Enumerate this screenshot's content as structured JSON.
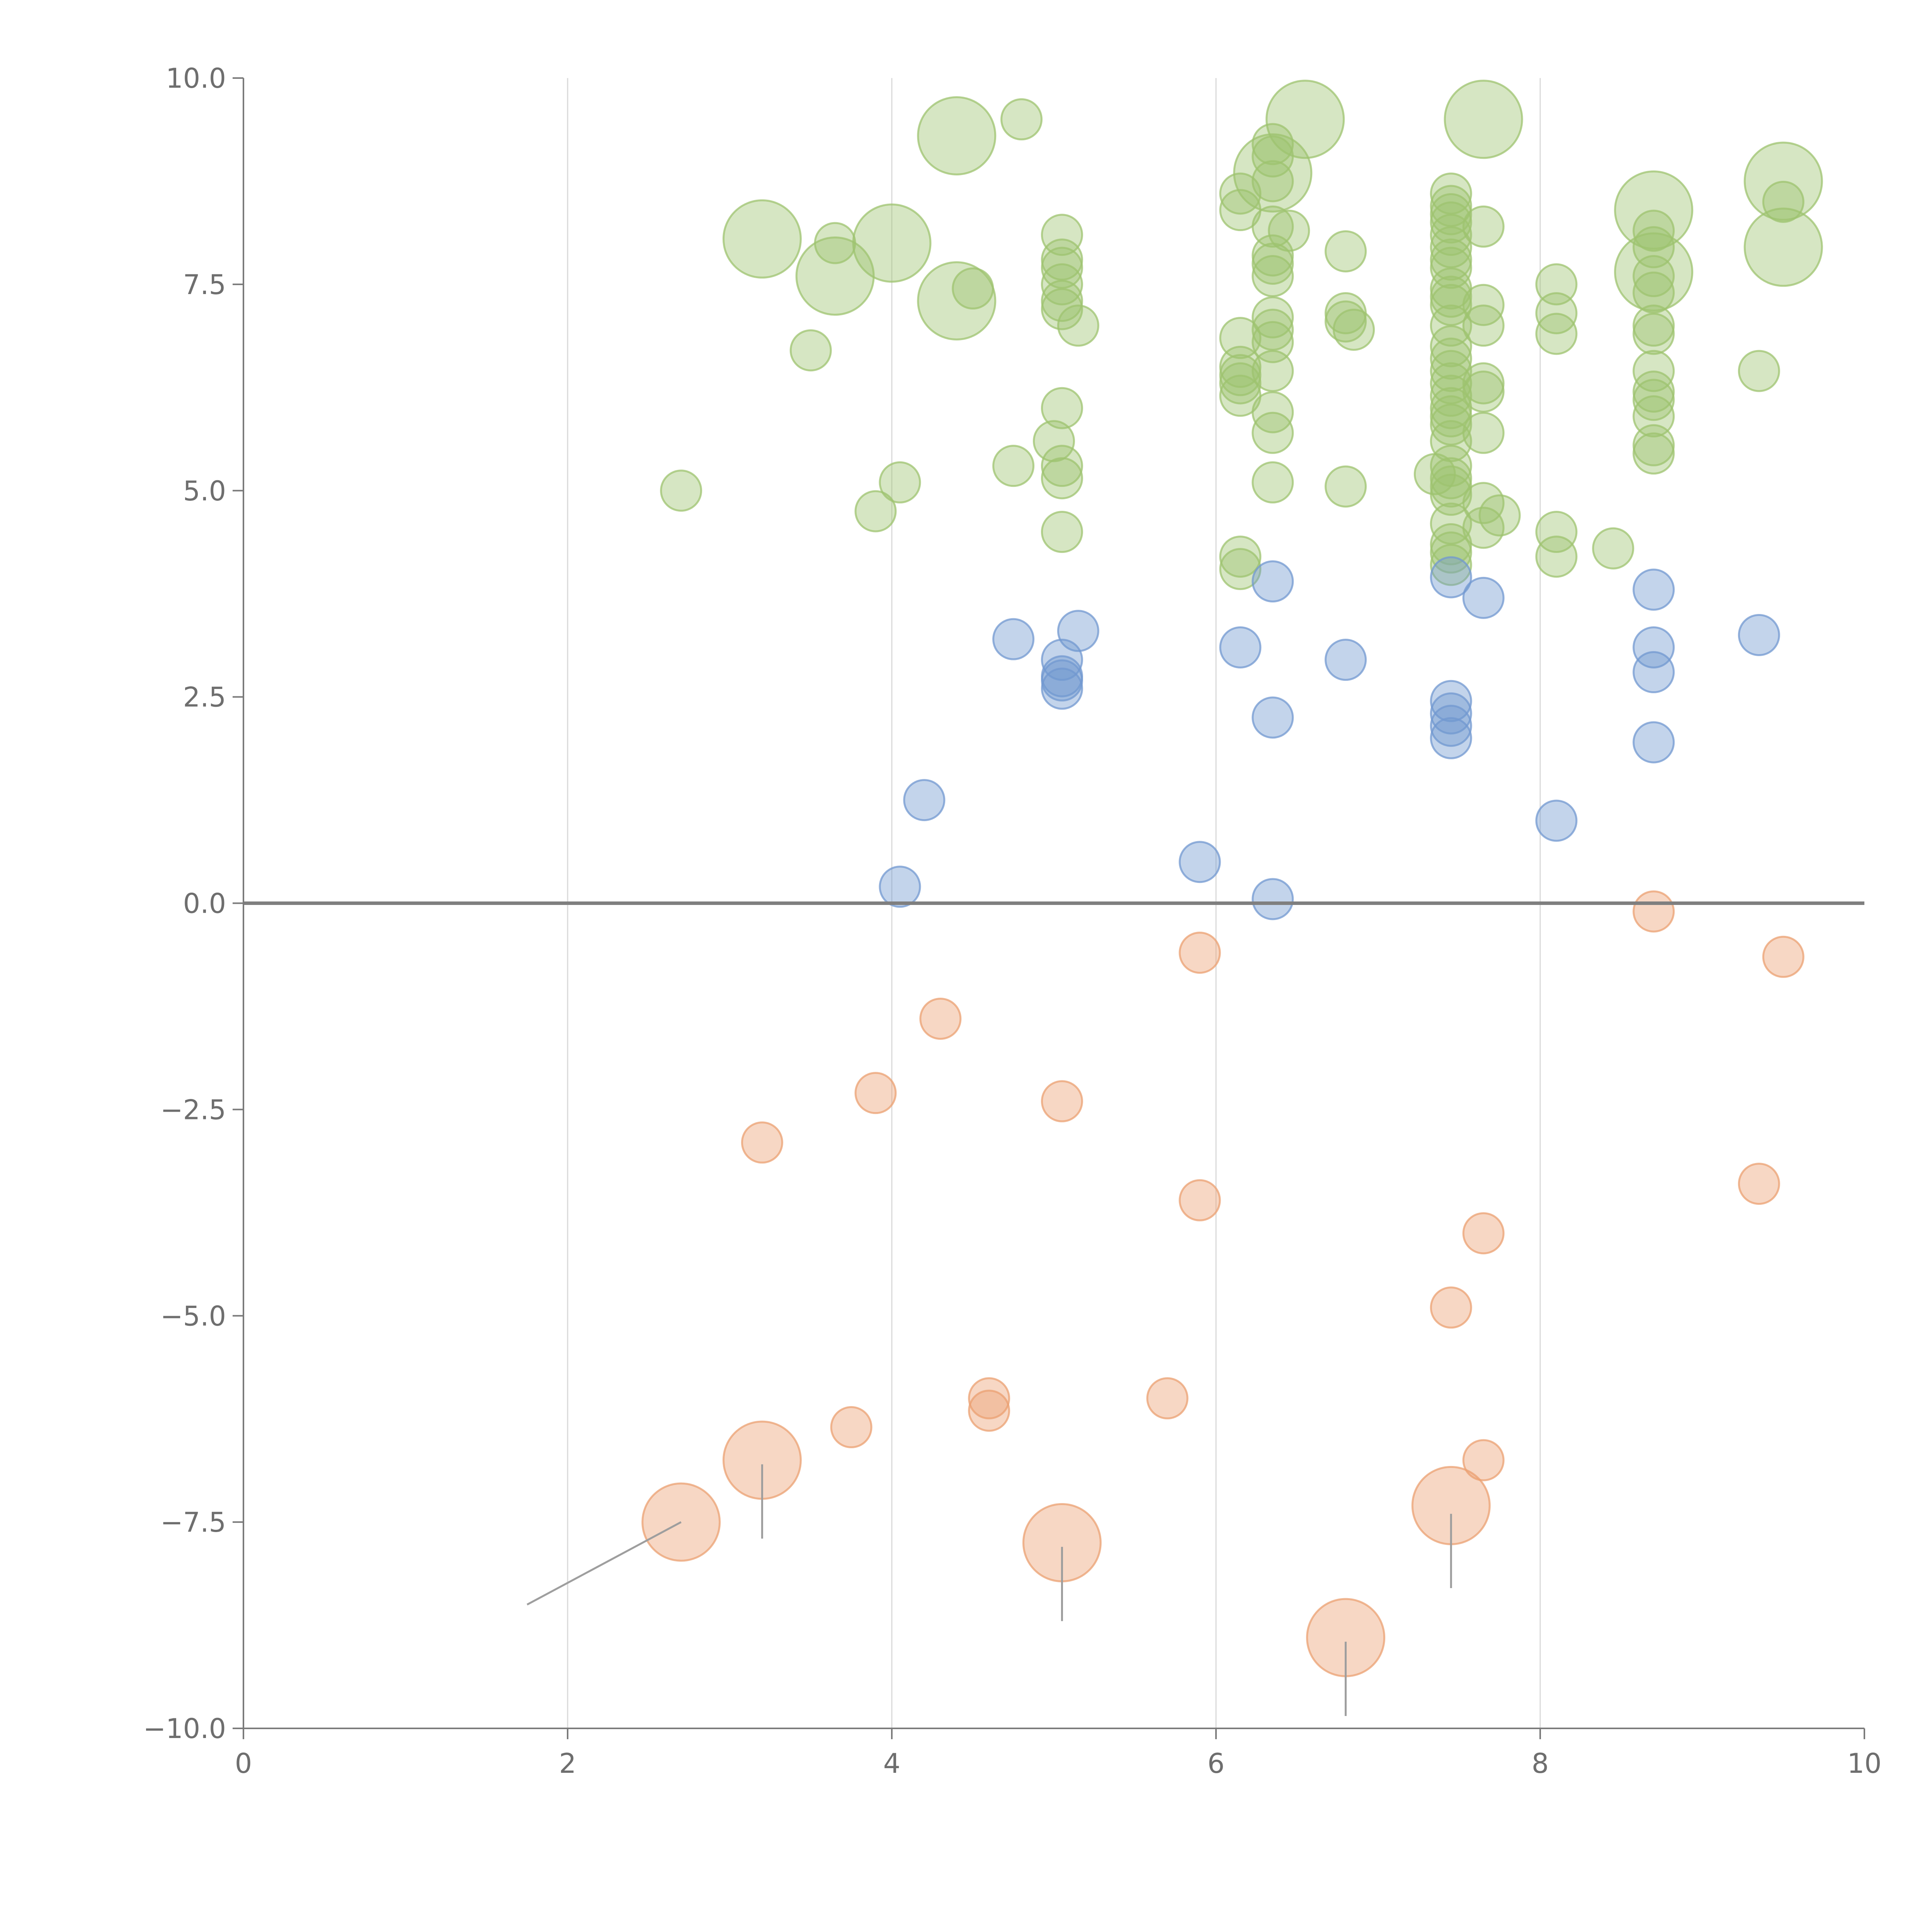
{
  "chart_data": {
    "type": "scatter",
    "title": "",
    "xlabel": "",
    "ylabel": "",
    "xlim": [
      0,
      10
    ],
    "ylim": [
      -10,
      10
    ],
    "x_ticks": [
      0,
      2,
      4,
      6,
      8,
      10
    ],
    "x_tick_labels": [
      "0",
      "2",
      "4",
      "6",
      "8",
      "10"
    ],
    "y_ticks": [
      10,
      7.5,
      5,
      2.5,
      0,
      -2.5,
      -5,
      -7.5,
      -10
    ],
    "y_tick_labels": [
      "10.0",
      "7.5",
      "5.0",
      "2.5",
      "0.0",
      "−2.5",
      "−5.0",
      "−7.5",
      "−10.0"
    ],
    "vertical_grid": [
      2,
      4,
      6,
      8
    ],
    "zero_line": true,
    "legend": "none",
    "colors": {
      "high": "#9dc36f",
      "mid": "#7198d0",
      "low": "#eba072"
    },
    "series": [
      {
        "name": "high",
        "color": "#9dc36f",
        "points": [
          [
            4.4,
            9.3,
            2
          ],
          [
            4.8,
            9.5,
            1
          ],
          [
            6.55,
            9.5,
            2
          ],
          [
            7.65,
            9.5,
            2
          ],
          [
            3.2,
            8.05,
            2
          ],
          [
            3.65,
            8.0,
            1
          ],
          [
            4.0,
            8.0,
            2
          ],
          [
            3.65,
            7.6,
            2
          ],
          [
            4.4,
            7.3,
            2
          ],
          [
            4.5,
            7.45,
            1
          ],
          [
            3.5,
            6.7,
            1
          ],
          [
            2.7,
            5.0,
            1
          ],
          [
            3.9,
            4.75,
            1
          ],
          [
            4.05,
            5.1,
            1
          ],
          [
            4.75,
            5.3,
            1
          ],
          [
            5.05,
            8.1,
            1
          ],
          [
            5.05,
            7.8,
            1
          ],
          [
            5.05,
            7.7,
            1
          ],
          [
            5.05,
            7.5,
            1
          ],
          [
            5.05,
            7.3,
            1
          ],
          [
            5.05,
            7.2,
            1
          ],
          [
            5.15,
            7.0,
            1
          ],
          [
            5.05,
            6.0,
            1
          ],
          [
            5.0,
            5.6,
            1
          ],
          [
            5.05,
            5.3,
            1
          ],
          [
            5.05,
            5.15,
            1
          ],
          [
            5.05,
            4.5,
            1
          ],
          [
            6.35,
            9.2,
            1
          ],
          [
            6.35,
            9.05,
            1
          ],
          [
            6.35,
            8.85,
            2
          ],
          [
            6.35,
            8.75,
            1
          ],
          [
            6.15,
            8.6,
            1
          ],
          [
            6.15,
            8.4,
            1
          ],
          [
            6.35,
            8.2,
            1
          ],
          [
            6.45,
            8.15,
            1
          ],
          [
            6.35,
            7.85,
            1
          ],
          [
            6.35,
            7.75,
            1
          ],
          [
            6.35,
            7.6,
            1
          ],
          [
            6.35,
            7.1,
            1
          ],
          [
            6.35,
            6.95,
            1
          ],
          [
            6.35,
            6.8,
            1
          ],
          [
            6.15,
            6.85,
            1
          ],
          [
            6.15,
            6.5,
            1
          ],
          [
            6.15,
            6.4,
            1
          ],
          [
            6.15,
            6.3,
            1
          ],
          [
            6.15,
            6.15,
            1
          ],
          [
            6.35,
            6.45,
            1
          ],
          [
            6.35,
            5.95,
            1
          ],
          [
            6.35,
            5.7,
            1
          ],
          [
            6.35,
            5.1,
            1
          ],
          [
            6.15,
            4.2,
            1
          ],
          [
            6.15,
            4.05,
            1
          ],
          [
            6.8,
            7.9,
            1
          ],
          [
            6.8,
            7.15,
            1
          ],
          [
            6.8,
            7.05,
            1
          ],
          [
            6.85,
            6.95,
            1
          ],
          [
            6.8,
            5.05,
            1
          ],
          [
            7.45,
            8.6,
            1
          ],
          [
            7.45,
            8.45,
            1
          ],
          [
            7.45,
            8.35,
            1
          ],
          [
            7.45,
            8.25,
            1
          ],
          [
            7.45,
            8.1,
            1
          ],
          [
            7.45,
            7.95,
            1
          ],
          [
            7.45,
            7.8,
            1
          ],
          [
            7.45,
            7.7,
            1
          ],
          [
            7.45,
            7.45,
            1
          ],
          [
            7.45,
            7.35,
            1
          ],
          [
            7.45,
            7.25,
            1
          ],
          [
            7.45,
            7.0,
            1
          ],
          [
            7.45,
            6.75,
            1
          ],
          [
            7.45,
            6.6,
            1
          ],
          [
            7.45,
            6.45,
            1
          ],
          [
            7.45,
            6.3,
            1
          ],
          [
            7.45,
            6.15,
            1
          ],
          [
            7.45,
            6.0,
            1
          ],
          [
            7.45,
            5.9,
            1
          ],
          [
            7.45,
            5.8,
            1
          ],
          [
            7.45,
            5.6,
            1
          ],
          [
            7.45,
            5.3,
            1
          ],
          [
            7.35,
            5.2,
            1
          ],
          [
            7.45,
            5.15,
            1
          ],
          [
            7.45,
            5.05,
            1
          ],
          [
            7.45,
            4.95,
            1
          ],
          [
            7.45,
            4.6,
            1
          ],
          [
            7.45,
            4.35,
            1
          ],
          [
            7.45,
            4.25,
            1
          ],
          [
            7.45,
            4.1,
            1
          ],
          [
            7.65,
            8.2,
            1
          ],
          [
            7.65,
            7.25,
            1
          ],
          [
            7.65,
            7.0,
            1
          ],
          [
            7.65,
            6.3,
            1
          ],
          [
            7.65,
            6.2,
            1
          ],
          [
            7.65,
            5.7,
            1
          ],
          [
            7.65,
            4.85,
            1
          ],
          [
            7.75,
            4.7,
            1
          ],
          [
            7.65,
            4.55,
            1
          ],
          [
            8.1,
            7.5,
            1
          ],
          [
            8.1,
            7.15,
            1
          ],
          [
            8.1,
            6.9,
            1
          ],
          [
            8.1,
            4.5,
            1
          ],
          [
            8.1,
            4.2,
            1
          ],
          [
            8.45,
            4.3,
            1
          ],
          [
            8.7,
            8.4,
            2
          ],
          [
            8.7,
            8.15,
            1
          ],
          [
            8.7,
            7.95,
            1
          ],
          [
            8.7,
            7.65,
            2
          ],
          [
            8.7,
            7.6,
            1
          ],
          [
            8.7,
            7.4,
            1
          ],
          [
            8.7,
            7.0,
            1
          ],
          [
            8.7,
            6.9,
            1
          ],
          [
            8.7,
            6.45,
            1
          ],
          [
            8.7,
            6.2,
            1
          ],
          [
            8.7,
            6.1,
            1
          ],
          [
            8.7,
            5.9,
            1
          ],
          [
            8.7,
            5.55,
            1
          ],
          [
            8.7,
            5.45,
            1
          ],
          [
            9.35,
            6.45,
            1
          ],
          [
            9.5,
            8.75,
            2
          ],
          [
            9.5,
            8.5,
            1
          ],
          [
            9.5,
            7.95,
            2
          ]
        ]
      },
      {
        "name": "mid",
        "color": "#7198d0",
        "points": [
          [
            4.05,
            0.2,
            1
          ],
          [
            4.2,
            1.25,
            1
          ],
          [
            4.75,
            3.2,
            1
          ],
          [
            5.15,
            3.3,
            1
          ],
          [
            5.05,
            2.95,
            1
          ],
          [
            5.05,
            2.75,
            1
          ],
          [
            5.05,
            2.7,
            1
          ],
          [
            5.05,
            2.6,
            1
          ],
          [
            5.9,
            0.5,
            1
          ],
          [
            6.15,
            3.1,
            1
          ],
          [
            6.35,
            3.9,
            1
          ],
          [
            6.35,
            2.25,
            1
          ],
          [
            6.35,
            0.05,
            1
          ],
          [
            6.8,
            2.95,
            1
          ],
          [
            7.45,
            3.95,
            1
          ],
          [
            7.45,
            2.45,
            1
          ],
          [
            7.45,
            2.3,
            1
          ],
          [
            7.45,
            2.15,
            1
          ],
          [
            7.45,
            2.0,
            1
          ],
          [
            7.65,
            3.7,
            1
          ],
          [
            8.1,
            1.0,
            1
          ],
          [
            8.7,
            3.8,
            1
          ],
          [
            8.7,
            3.1,
            1
          ],
          [
            8.7,
            2.8,
            1
          ],
          [
            8.7,
            1.95,
            1
          ],
          [
            9.35,
            3.25,
            1
          ]
        ]
      },
      {
        "name": "low",
        "color": "#eba072",
        "points": [
          [
            2.7,
            -7.5,
            2
          ],
          [
            3.2,
            -6.75,
            2
          ],
          [
            3.2,
            -2.9,
            1
          ],
          [
            3.75,
            -6.35,
            1
          ],
          [
            3.9,
            -2.3,
            1
          ],
          [
            4.3,
            -1.4,
            1
          ],
          [
            4.6,
            -6.0,
            1
          ],
          [
            4.6,
            -6.15,
            1
          ],
          [
            5.05,
            -7.75,
            2
          ],
          [
            5.05,
            -2.4,
            1
          ],
          [
            5.7,
            -6.0,
            1
          ],
          [
            5.9,
            -0.6,
            1
          ],
          [
            5.9,
            -3.6,
            1
          ],
          [
            6.8,
            -8.9,
            2
          ],
          [
            7.45,
            -7.3,
            2
          ],
          [
            7.45,
            -4.9,
            1
          ],
          [
            7.65,
            -4.0,
            1
          ],
          [
            7.65,
            -6.75,
            1
          ],
          [
            8.7,
            -0.1,
            1
          ],
          [
            9.35,
            -3.4,
            1
          ],
          [
            9.5,
            -0.65,
            1
          ]
        ]
      }
    ],
    "leader_lines": [
      [
        [
          2.7,
          -7.5
        ],
        [
          1.75,
          -8.5
        ]
      ],
      [
        [
          3.2,
          -6.8
        ],
        [
          3.2,
          -7.7
        ]
      ],
      [
        [
          5.05,
          -7.8
        ],
        [
          5.05,
          -8.7
        ]
      ],
      [
        [
          6.8,
          -8.95
        ],
        [
          6.8,
          -9.85
        ]
      ],
      [
        [
          7.45,
          -7.4
        ],
        [
          7.45,
          -8.3
        ]
      ]
    ]
  }
}
